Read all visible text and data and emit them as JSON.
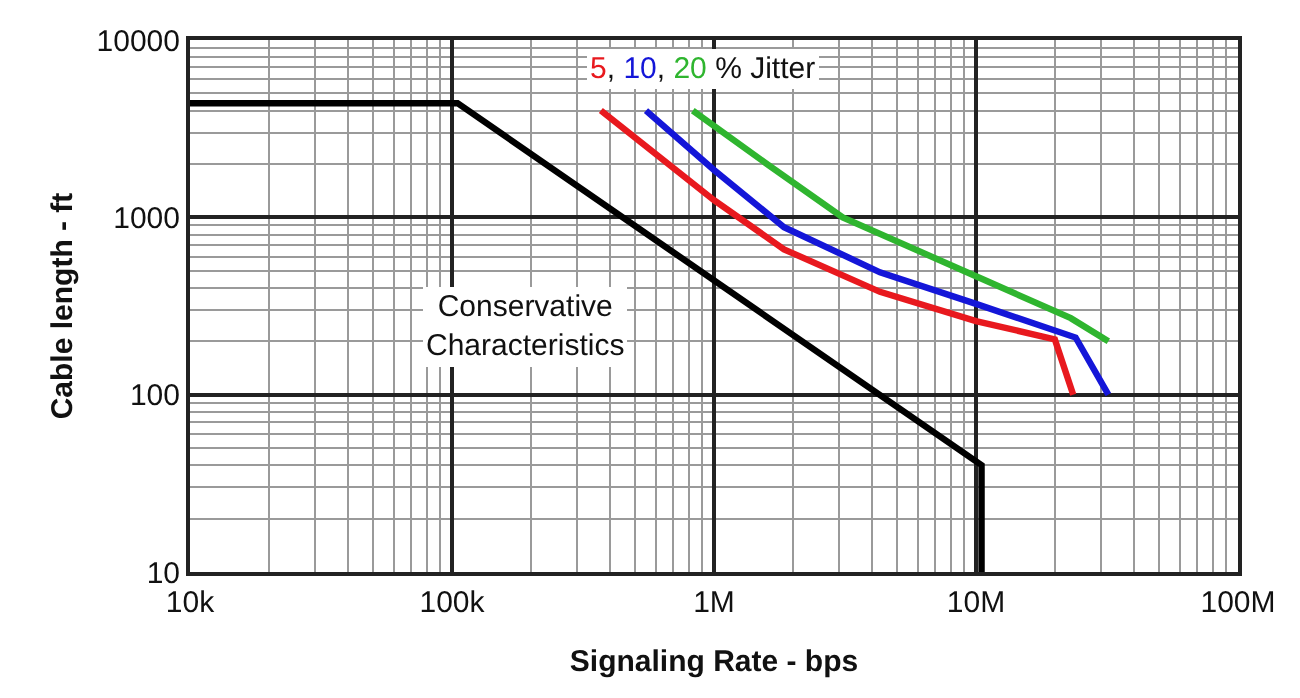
{
  "chart_data": {
    "type": "line",
    "xlabel": "Signaling Rate - bps",
    "ylabel": "Cable length - ft",
    "log": "xy",
    "grid": true,
    "marker": "none",
    "line_style": "solid",
    "xlim": [
      10000,
      100000000
    ],
    "ylim": [
      10,
      10000
    ],
    "xticks": [
      {
        "value": 10000,
        "label": "10k"
      },
      {
        "value": 100000,
        "label": "100k"
      },
      {
        "value": 1000000,
        "label": "1M"
      },
      {
        "value": 10000000,
        "label": "10M"
      },
      {
        "value": 100000000,
        "label": "100M"
      }
    ],
    "yticks": [
      10,
      100,
      1000,
      10000
    ],
    "series": [
      {
        "color": "#000000",
        "x": [
          10000,
          105000,
          10500000,
          10500000
        ],
        "values": [
          4400,
          4400,
          40,
          10
        ]
      },
      {
        "color": "#e8191e",
        "x": [
          370000,
          1000000,
          1850000,
          4300000,
          10000000,
          20000000,
          23500000
        ],
        "values": [
          4000,
          1250,
          660,
          380,
          260,
          205,
          100
        ]
      },
      {
        "color": "#1416d8",
        "x": [
          550000,
          1000000,
          1850000,
          4300000,
          10000000,
          24000000,
          32000000
        ],
        "values": [
          4000,
          1850,
          880,
          490,
          325,
          210,
          100
        ]
      },
      {
        "color": "#2fb52f",
        "x": [
          830000,
          1670000,
          3100000,
          10000000,
          23000000,
          32000000
        ],
        "values": [
          4000,
          1900,
          1000,
          465,
          270,
          200
        ]
      }
    ],
    "annotations": [
      "Conservative\nCharacteristics",
      "5, 10, 20 % Jitter"
    ]
  }
}
